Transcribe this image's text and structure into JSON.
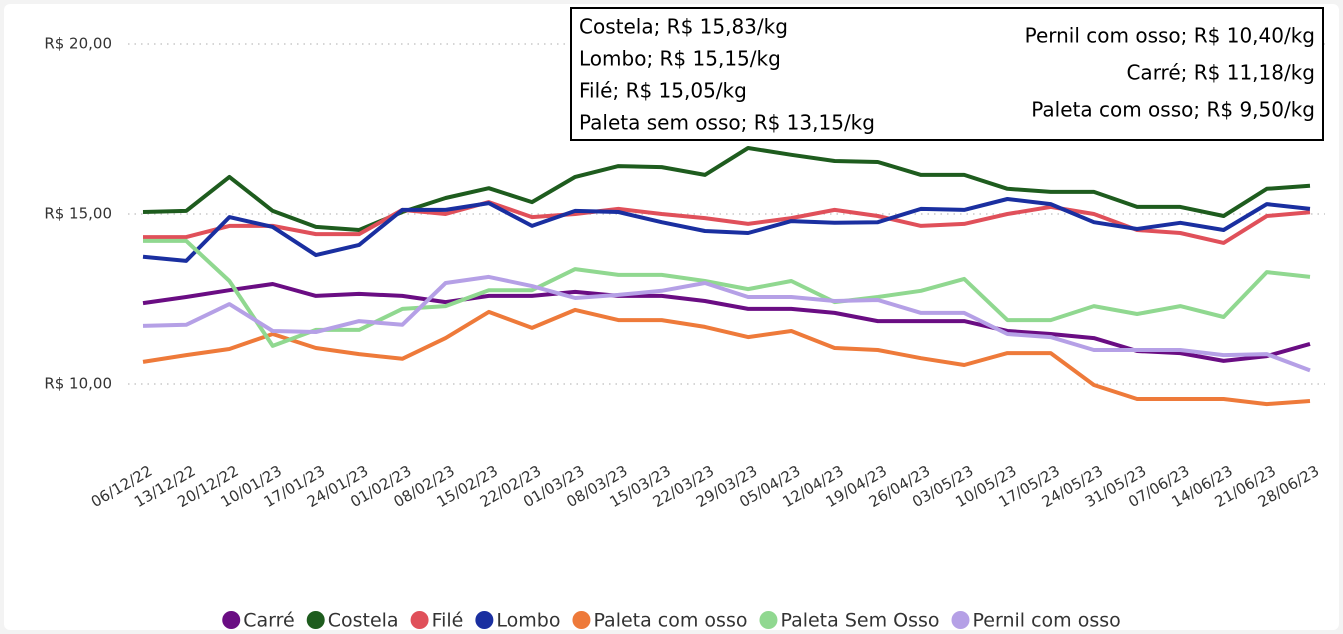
{
  "chart_data": {
    "type": "line",
    "categories": [
      "06/12/22",
      "13/12/22",
      "20/12/22",
      "10/01/23",
      "17/01/23",
      "24/01/23",
      "01/02/23",
      "08/02/23",
      "15/02/23",
      "22/02/23",
      "01/03/23",
      "08/03/23",
      "15/03/23",
      "22/03/23",
      "29/03/23",
      "05/04/23",
      "12/04/23",
      "19/04/23",
      "26/04/23",
      "03/05/23",
      "10/05/23",
      "17/05/23",
      "24/05/23",
      "31/05/23",
      "07/06/23",
      "14/06/23",
      "21/06/23",
      "28/06/23"
    ],
    "series": [
      {
        "name": "Carré",
        "color": "#6a0d83",
        "values": [
          12.38,
          12.56,
          12.76,
          12.94,
          12.59,
          12.65,
          12.59,
          12.41,
          12.59,
          12.59,
          12.71,
          12.59,
          12.59,
          12.44,
          12.21,
          12.21,
          12.09,
          11.85,
          11.85,
          11.85,
          11.56,
          11.47,
          11.35,
          10.97,
          10.91,
          10.68,
          10.82,
          11.18
        ]
      },
      {
        "name": "Costela",
        "color": "#1e5c1e",
        "values": [
          15.06,
          15.09,
          16.09,
          15.09,
          14.62,
          14.53,
          15.06,
          15.47,
          15.76,
          15.35,
          16.09,
          16.41,
          16.38,
          16.15,
          16.94,
          16.74,
          16.56,
          16.53,
          16.15,
          16.15,
          15.74,
          15.65,
          15.65,
          15.21,
          15.21,
          14.94,
          15.74,
          15.83
        ]
      },
      {
        "name": "Filé",
        "color": "#e0505a",
        "values": [
          14.32,
          14.32,
          14.65,
          14.65,
          14.41,
          14.41,
          15.12,
          15.0,
          15.35,
          14.91,
          15.0,
          15.15,
          15.0,
          14.88,
          14.71,
          14.88,
          15.12,
          14.94,
          14.65,
          14.71,
          15.0,
          15.21,
          15.0,
          14.53,
          14.44,
          14.15,
          14.94,
          15.05
        ]
      },
      {
        "name": "Lombo",
        "color": "#1a2fa0",
        "values": [
          13.74,
          13.62,
          14.91,
          14.62,
          13.79,
          14.09,
          15.12,
          15.12,
          15.32,
          14.65,
          15.09,
          15.06,
          14.76,
          14.5,
          14.44,
          14.79,
          14.74,
          14.76,
          15.15,
          15.12,
          15.44,
          15.29,
          14.76,
          14.56,
          14.74,
          14.53,
          15.29,
          15.15
        ]
      },
      {
        "name": "Paleta com osso",
        "color": "#ee7a3a",
        "values": [
          10.65,
          10.85,
          11.03,
          11.47,
          11.06,
          10.88,
          10.74,
          11.35,
          12.12,
          11.65,
          12.18,
          11.88,
          11.88,
          11.68,
          11.38,
          11.56,
          11.06,
          11.0,
          10.76,
          10.56,
          10.91,
          10.91,
          9.97,
          9.56,
          9.56,
          9.56,
          9.41,
          9.5
        ]
      },
      {
        "name": "Paleta Sem Osso",
        "color": "#90d890",
        "values": [
          14.21,
          14.21,
          13.03,
          11.12,
          11.59,
          11.59,
          12.21,
          12.29,
          12.76,
          12.76,
          13.38,
          13.21,
          13.21,
          13.03,
          12.79,
          13.03,
          12.41,
          12.56,
          12.74,
          13.09,
          11.88,
          11.88,
          12.29,
          12.06,
          12.29,
          11.97,
          13.29,
          13.15
        ]
      },
      {
        "name": "Pernil com osso",
        "color": "#b5a0e6",
        "values": [
          11.71,
          11.74,
          12.35,
          11.56,
          11.53,
          11.85,
          11.74,
          12.97,
          13.15,
          12.88,
          12.53,
          12.62,
          12.74,
          12.97,
          12.56,
          12.56,
          12.44,
          12.47,
          12.09,
          12.09,
          11.47,
          11.38,
          11.0,
          11.0,
          11.0,
          10.85,
          10.88,
          10.4
        ]
      }
    ],
    "ylim": [
      8,
      20.5
    ],
    "yticks": [
      {
        "value": 10,
        "label": "R$ 10,00"
      },
      {
        "value": 15,
        "label": "R$ 15,00"
      },
      {
        "value": 20,
        "label": "R$ 20,00"
      }
    ],
    "grid": true,
    "legend": "bottom",
    "annotation_box": {
      "left": [
        "Costela; R$ 15,83/kg",
        "Lombo; R$ 15,15/kg",
        "Filé; R$ 15,05/kg",
        "Paleta sem osso; R$ 13,15/kg"
      ],
      "right": [
        "Pernil com osso; R$ 10,40/kg",
        "Carré; R$ 11,18/kg",
        "Paleta com osso; R$ 9,50/kg"
      ]
    }
  }
}
